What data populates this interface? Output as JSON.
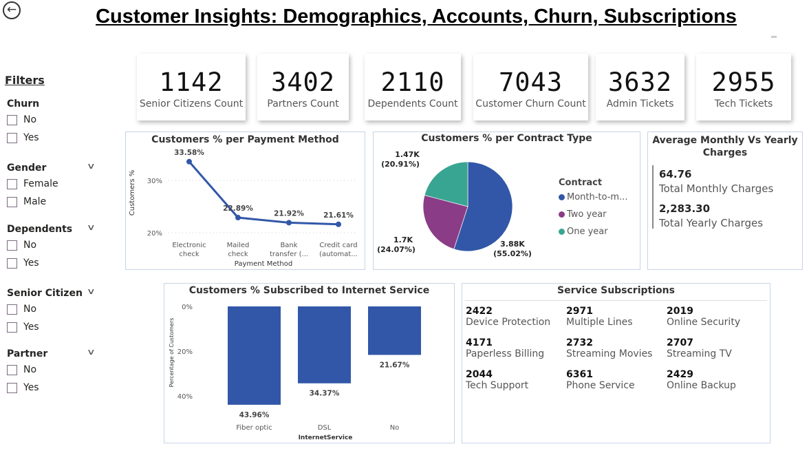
{
  "header": {
    "title": "Customer Insights: Demographics, Accounts, Churn, Subscriptions",
    "back_icon": "back-arrow-icon"
  },
  "filters": {
    "title": "Filters",
    "groups": [
      {
        "title": "Churn",
        "options": [
          "No",
          "Yes"
        ],
        "collapsible": false
      },
      {
        "title": "Gender",
        "options": [
          "Female",
          "Male"
        ],
        "collapsible": true
      },
      {
        "title": "Dependents",
        "options": [
          "No",
          "Yes"
        ],
        "collapsible": true
      },
      {
        "title": "Senior Citizen",
        "options": [
          "No",
          "Yes"
        ],
        "collapsible": true
      },
      {
        "title": "Partner",
        "options": [
          "No",
          "Yes"
        ],
        "collapsible": true
      }
    ]
  },
  "kpis": [
    {
      "value": "1142",
      "label": "Senior Citizens Count"
    },
    {
      "value": "3402",
      "label": "Partners Count"
    },
    {
      "value": "2110",
      "label": "Dependents Count"
    },
    {
      "value": "7043",
      "label": "Customer Churn Count"
    },
    {
      "value": "3632",
      "label": "Admin Tickets"
    },
    {
      "value": "2955",
      "label": "Tech Tickets"
    }
  ],
  "charges": {
    "title": "Average Monthly Vs Yearly Charges",
    "monthly_value": "64.76",
    "monthly_label": "Total Monthly Charges",
    "yearly_value": "2,283.30",
    "yearly_label": "Total Yearly Charges"
  },
  "services": {
    "title": "Service Subscriptions",
    "items": [
      {
        "value": "2422",
        "label": "Device Protection"
      },
      {
        "value": "2971",
        "label": "Multiple Lines"
      },
      {
        "value": "2019",
        "label": "Online Security"
      },
      {
        "value": "4171",
        "label": "Paperless Billing"
      },
      {
        "value": "2732",
        "label": "Streaming Movies"
      },
      {
        "value": "2707",
        "label": "Streaming TV"
      },
      {
        "value": "2044",
        "label": "Tech Support"
      },
      {
        "value": "6361",
        "label": "Phone Service"
      },
      {
        "value": "2429",
        "label": "Online Backup"
      }
    ]
  },
  "colors": {
    "primary": "#3257a8",
    "purple": "#8b3c86",
    "teal": "#38a592"
  },
  "chart_data": [
    {
      "type": "line",
      "title": "Customers % per Payment Method",
      "xlabel": "Payment Method",
      "ylabel": "Customers %",
      "categories": [
        "Electronic check",
        "Mailed check",
        "Bank transfer (...",
        "Credit card (automat..."
      ],
      "category_lines": [
        [
          "Electronic",
          "check"
        ],
        [
          "Mailed",
          "check"
        ],
        [
          "Bank",
          "transfer (..."
        ],
        [
          "Credit card",
          "(automat..."
        ]
      ],
      "values": [
        33.58,
        22.89,
        21.92,
        21.61
      ],
      "data_labels": [
        "33.58%",
        "22.89%",
        "21.92%",
        "21.61%"
      ],
      "yticks": [
        {
          "v": 20,
          "label": "20%"
        },
        {
          "v": 30,
          "label": "30%"
        }
      ],
      "ylim": [
        19,
        35
      ],
      "grid": true
    },
    {
      "type": "pie",
      "title": "Customers % per Contract Type",
      "legend_title": "Contract",
      "legend_position": "right",
      "slices": [
        {
          "name": "Month-to-month",
          "legend": "Month-to-m...",
          "value": 3875,
          "percent": 55.02,
          "label_value": "3.88K",
          "label_pct": "(55.02%)",
          "color": "#3257a8"
        },
        {
          "name": "Two year",
          "legend": "Two year",
          "value": 1695,
          "percent": 24.07,
          "label_value": "1.7K",
          "label_pct": "(24.07%)",
          "color": "#8b3c86"
        },
        {
          "name": "One year",
          "legend": "One year",
          "value": 1473,
          "percent": 20.91,
          "label_value": "1.47K",
          "label_pct": "(20.91%)",
          "color": "#38a592"
        }
      ]
    },
    {
      "type": "bar",
      "title": "Customers % Subscribed to Internet Service",
      "xlabel": "InternetService",
      "ylabel": "Percentage of Customers",
      "categories": [
        "Fiber optic",
        "DSL",
        "No"
      ],
      "values": [
        43.96,
        34.37,
        21.67
      ],
      "data_labels": [
        "43.96%",
        "34.37%",
        "21.67%"
      ],
      "yticks": [
        {
          "v": 0,
          "label": "0%"
        },
        {
          "v": 20,
          "label": "20%"
        },
        {
          "v": 40,
          "label": "40%"
        }
      ],
      "ylim": [
        0,
        46
      ],
      "reversed": true
    }
  ]
}
